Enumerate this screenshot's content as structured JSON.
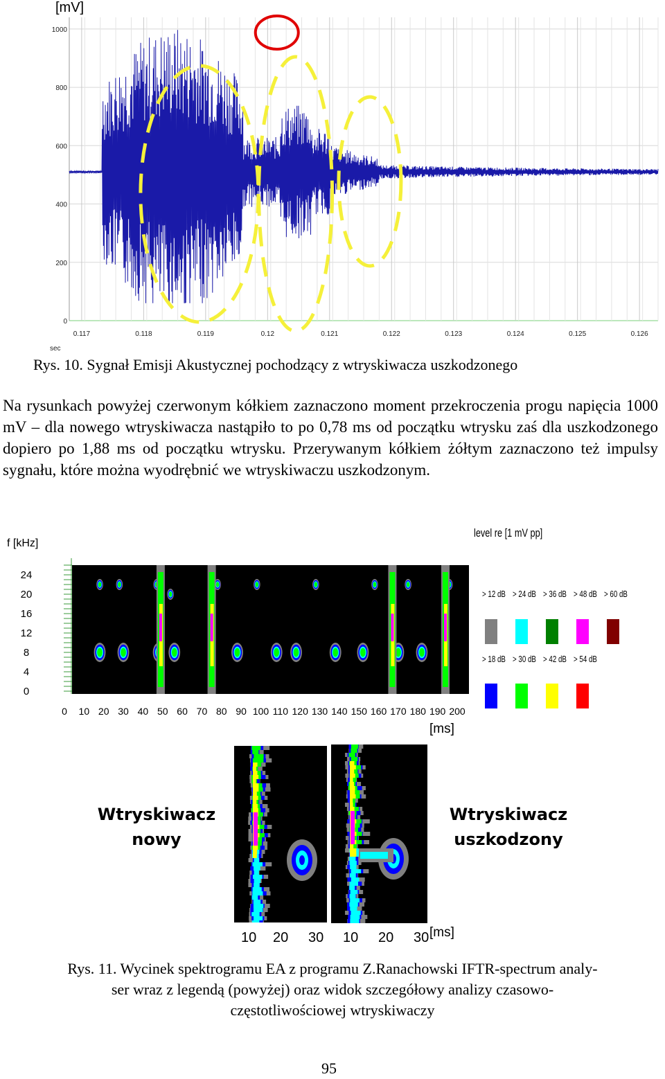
{
  "fig10": {
    "y_unit": "[mV]",
    "x_unit": "sec",
    "caption": "Rys. 10. Sygnał Emisji Akustycznej pochodzący z wtryskiwacza uszkodzonego"
  },
  "paragraph": "Na rysunkach powyżej czerwonym kółkiem zaznaczono moment przekroczenia progu napięcia 1000 mV – dla nowego wtryskiwacza nastąpiło to po 0,78 ms od początku wtrysku zaś dla uszkodzonego dopiero po 1,88 ms od początku wtrysku. Przerywanym kółkiem żółtym zaznaczono też impulsy sygnału, które można wyodrębnić we wtryskiwaczu uszkodzonym.",
  "fig11": {
    "y_unit": "f [kHz]",
    "x_unit": "[ms]",
    "legend_title": "level re [1 mV pp]",
    "legend_row1": [
      {
        "label": "> 12 dB",
        "color": "#808080"
      },
      {
        "label": "> 24 dB",
        "color": "#00ffff"
      },
      {
        "label": "> 36 dB",
        "color": "#008000"
      },
      {
        "label": "> 48 dB",
        "color": "#ff00ff"
      },
      {
        "label": "> 60 dB",
        "color": "#800000"
      }
    ],
    "legend_row2": [
      {
        "label": "> 18 dB",
        "color": "#0000ff"
      },
      {
        "label": "> 30 dB",
        "color": "#00ff00"
      },
      {
        "label": "> 42 dB",
        "color": "#ffff00"
      },
      {
        "label": "> 54 dB",
        "color": "#ff0000"
      }
    ],
    "detail_label_left_1": "Wtryskiwacz",
    "detail_label_left_2": "nowy",
    "detail_label_right_1": "Wtryskiwacz",
    "detail_label_right_2": "uszkodzony",
    "detail_x_unit": "[ms]",
    "detail_ticks_left": [
      "10",
      "20",
      "30"
    ],
    "detail_ticks_right": [
      "10",
      "20",
      "30"
    ],
    "caption_line1": "Rys. 11. Wycinek spektrogramu EA z programu Z.Ranachowski IFTR-spectrum analy-",
    "caption_line2": "ser wraz z legendą (powyżej) oraz widok szczegółowy analizy czasowo-",
    "caption_line3": "częstotliwościowej wtryskiwaczy"
  },
  "page_number": "95",
  "chart_data": [
    {
      "type": "line",
      "title": "",
      "xlabel": "sec",
      "ylabel": "[mV]",
      "x_ticks": [
        "0.117",
        "0.118",
        "0.119",
        "0.12",
        "0.121",
        "0.122",
        "0.123",
        "0.124",
        "0.125",
        "0.126"
      ],
      "y_ticks": [
        "0",
        "200",
        "400",
        "600",
        "800",
        "1000"
      ],
      "xlim": [
        0.1168,
        0.1263
      ],
      "ylim": [
        0,
        1040
      ],
      "grid": true,
      "series": [
        {
          "color": "#1a1aa8",
          "baseline": 510
        }
      ],
      "annotations": [
        {
          "shape": "circle",
          "color": "#e00000",
          "x": 0.12015,
          "y": 1040
        },
        {
          "shape": "dashed-ellipse",
          "color": "#f5f03a",
          "x_center": 0.1189,
          "y_center": 570
        },
        {
          "shape": "dashed-ellipse",
          "color": "#f5f03a",
          "x_center": 0.12045,
          "y_center": 570
        },
        {
          "shape": "dashed-ellipse",
          "color": "#f5f03a",
          "x_center": 0.12165,
          "y_center": 570
        }
      ]
    },
    {
      "type": "heatmap",
      "title": "",
      "xlabel": "[ms]",
      "ylabel": "f [kHz]",
      "x_ticks": [
        "0",
        "10",
        "20",
        "30",
        "40",
        "50",
        "60",
        "70",
        "80",
        "90",
        "100",
        "110",
        "120",
        "130",
        "140",
        "150",
        "160",
        "170",
        "180",
        "190",
        "200"
      ],
      "y_ticks": [
        "24",
        "20",
        "16",
        "12",
        "8",
        "4",
        "0"
      ],
      "xlim": [
        0,
        205
      ],
      "ylim": [
        0,
        26
      ]
    }
  ]
}
